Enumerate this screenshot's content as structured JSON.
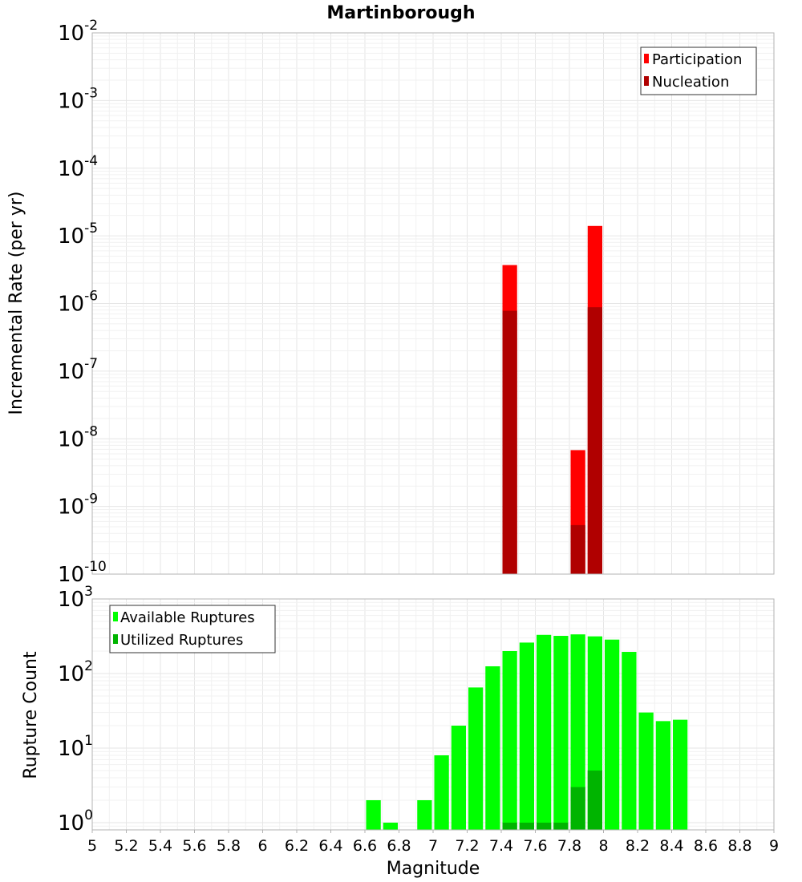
{
  "chart_data": [
    {
      "type": "bar",
      "title": "Martinborough",
      "xlabel": "",
      "ylabel": "Incremental Rate (per yr)",
      "y_scale": "log",
      "xlim": [
        5,
        9
      ],
      "ylim": [
        1e-10,
        0.01
      ],
      "x_ticks": [
        "5",
        "5.2",
        "5.4",
        "5.6",
        "5.8",
        "6",
        "6.2",
        "6.4",
        "6.6",
        "6.8",
        "7",
        "7.2",
        "7.4",
        "7.6",
        "7.8",
        "8",
        "8.2",
        "8.4",
        "8.6",
        "8.8",
        "9"
      ],
      "y_tick_exponents": [
        -10,
        -9,
        -8,
        -7,
        -6,
        -5,
        -4,
        -3,
        -2
      ],
      "grid": true,
      "legend_position": "top-right",
      "series": [
        {
          "name": "Participation",
          "color": "#ff0000",
          "x": [
            7.45,
            7.85,
            7.95
          ],
          "values": [
            3.7e-06,
            6.8e-09,
            1.4e-05
          ]
        },
        {
          "name": "Nucleation",
          "color": "#b00000",
          "x": [
            7.45,
            7.85,
            7.95
          ],
          "values": [
            7.8e-07,
            5.3e-10,
            8.8e-07
          ]
        }
      ]
    },
    {
      "type": "bar",
      "title": "",
      "xlabel": "Magnitude",
      "ylabel": "Rupture Count",
      "y_scale": "log",
      "xlim": [
        5,
        9
      ],
      "ylim": [
        0.8,
        1000
      ],
      "x_ticks": [
        "5",
        "5.2",
        "5.4",
        "5.6",
        "5.8",
        "6",
        "6.2",
        "6.4",
        "6.6",
        "6.8",
        "7",
        "7.2",
        "7.4",
        "7.6",
        "7.8",
        "8",
        "8.2",
        "8.4",
        "8.6",
        "8.8",
        "9"
      ],
      "y_tick_exponents": [
        0,
        1,
        2,
        3
      ],
      "grid": true,
      "legend_position": "top-left",
      "series": [
        {
          "name": "Available Ruptures",
          "color": "#00ff00",
          "x": [
            6.65,
            6.75,
            6.95,
            7.05,
            7.15,
            7.25,
            7.35,
            7.45,
            7.55,
            7.65,
            7.75,
            7.85,
            7.95,
            8.05,
            8.15,
            8.25,
            8.35,
            8.45
          ],
          "values": [
            2,
            1,
            2,
            8,
            20,
            65,
            125,
            200,
            260,
            330,
            320,
            335,
            315,
            285,
            195,
            30,
            23,
            24
          ]
        },
        {
          "name": "Utilized Ruptures",
          "color": "#00b400",
          "x": [
            7.45,
            7.55,
            7.65,
            7.75,
            7.85,
            7.95
          ],
          "values": [
            1,
            1,
            1,
            1,
            3,
            5
          ]
        }
      ]
    }
  ]
}
